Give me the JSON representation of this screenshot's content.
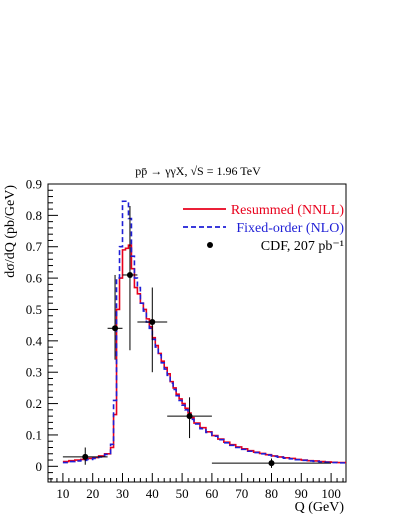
{
  "chart_data": {
    "type": "line",
    "title": "pp̄ → γγX, √S = 1.96 TeV",
    "xlabel": "Q (GeV)",
    "ylabel": "dσ/dQ (pb/GeV)",
    "xlim": [
      5,
      105
    ],
    "ylim": [
      -0.05,
      0.9
    ],
    "xticks": [
      10,
      20,
      30,
      40,
      50,
      60,
      70,
      80,
      90,
      100
    ],
    "yticks": [
      0,
      0.1,
      0.2,
      0.3,
      0.4,
      0.5,
      0.6,
      0.7,
      0.8,
      0.9
    ],
    "legend_position": "right",
    "grid": false,
    "series": [
      {
        "name": "Resummed (NNLL)",
        "style": "step",
        "color": "#e8001c",
        "bins": [
          [
            10,
            12,
            0.015
          ],
          [
            12,
            14,
            0.018
          ],
          [
            14,
            16,
            0.02
          ],
          [
            16,
            18,
            0.022
          ],
          [
            18,
            20,
            0.025
          ],
          [
            20,
            22,
            0.028
          ],
          [
            22,
            24,
            0.033
          ],
          [
            24,
            26,
            0.04
          ],
          [
            26,
            27,
            0.06
          ],
          [
            27,
            28,
            0.165
          ],
          [
            28,
            29,
            0.5
          ],
          [
            29,
            30,
            0.6
          ],
          [
            30,
            31,
            0.69
          ],
          [
            31,
            32,
            0.695
          ],
          [
            32,
            33,
            0.705
          ],
          [
            33,
            34,
            0.63
          ],
          [
            34,
            35,
            0.57
          ],
          [
            35,
            36,
            0.55
          ],
          [
            36,
            37,
            0.52
          ],
          [
            37,
            38,
            0.5
          ],
          [
            38,
            39,
            0.47
          ],
          [
            39,
            40,
            0.445
          ],
          [
            40,
            41,
            0.41
          ],
          [
            41,
            42,
            0.385
          ],
          [
            42,
            43,
            0.36
          ],
          [
            43,
            44,
            0.335
          ],
          [
            44,
            45,
            0.315
          ],
          [
            45,
            46,
            0.295
          ],
          [
            46,
            47,
            0.27
          ],
          [
            47,
            48,
            0.25
          ],
          [
            48,
            49,
            0.23
          ],
          [
            49,
            50,
            0.215
          ],
          [
            50,
            51,
            0.2
          ],
          [
            51,
            52,
            0.185
          ],
          [
            52,
            53,
            0.17
          ],
          [
            53,
            54,
            0.155
          ],
          [
            54,
            56,
            0.138
          ],
          [
            56,
            58,
            0.123
          ],
          [
            58,
            60,
            0.11
          ],
          [
            60,
            62,
            0.098
          ],
          [
            62,
            64,
            0.087
          ],
          [
            64,
            66,
            0.077
          ],
          [
            66,
            68,
            0.069
          ],
          [
            68,
            70,
            0.062
          ],
          [
            70,
            72,
            0.056
          ],
          [
            72,
            74,
            0.05
          ],
          [
            74,
            76,
            0.045
          ],
          [
            76,
            78,
            0.041
          ],
          [
            78,
            80,
            0.037
          ],
          [
            80,
            82,
            0.033
          ],
          [
            82,
            84,
            0.03
          ],
          [
            84,
            86,
            0.027
          ],
          [
            86,
            88,
            0.025
          ],
          [
            88,
            90,
            0.022
          ],
          [
            90,
            92,
            0.02
          ],
          [
            92,
            94,
            0.018
          ],
          [
            94,
            96,
            0.017
          ],
          [
            96,
            98,
            0.015
          ],
          [
            98,
            100,
            0.014
          ],
          [
            100,
            102,
            0.013
          ],
          [
            102,
            105,
            0.012
          ]
        ]
      },
      {
        "name": "Fixed-order (NLO)",
        "style": "step-dashed",
        "color": "#1f1fd6",
        "bins": [
          [
            10,
            12,
            0.012
          ],
          [
            12,
            14,
            0.015
          ],
          [
            14,
            16,
            0.017
          ],
          [
            16,
            18,
            0.019
          ],
          [
            18,
            20,
            0.022
          ],
          [
            20,
            22,
            0.025
          ],
          [
            22,
            24,
            0.03
          ],
          [
            24,
            26,
            0.038
          ],
          [
            26,
            27,
            0.07
          ],
          [
            27,
            28,
            0.21
          ],
          [
            28,
            29,
            0.6
          ],
          [
            29,
            30,
            0.7
          ],
          [
            30,
            31,
            0.845
          ],
          [
            31,
            32,
            0.845
          ],
          [
            32,
            33,
            0.79
          ],
          [
            33,
            34,
            0.67
          ],
          [
            34,
            35,
            0.6
          ],
          [
            35,
            36,
            0.57
          ],
          [
            36,
            37,
            0.52
          ],
          [
            37,
            38,
            0.495
          ],
          [
            38,
            39,
            0.46
          ],
          [
            39,
            40,
            0.44
          ],
          [
            40,
            41,
            0.405
          ],
          [
            41,
            42,
            0.38
          ],
          [
            42,
            43,
            0.355
          ],
          [
            43,
            44,
            0.33
          ],
          [
            44,
            45,
            0.31
          ],
          [
            45,
            46,
            0.29
          ],
          [
            46,
            47,
            0.265
          ],
          [
            47,
            48,
            0.245
          ],
          [
            48,
            49,
            0.225
          ],
          [
            49,
            50,
            0.21
          ],
          [
            50,
            51,
            0.195
          ],
          [
            51,
            52,
            0.18
          ],
          [
            52,
            53,
            0.165
          ],
          [
            53,
            54,
            0.15
          ],
          [
            54,
            56,
            0.135
          ],
          [
            56,
            58,
            0.12
          ],
          [
            58,
            60,
            0.108
          ],
          [
            60,
            62,
            0.096
          ],
          [
            62,
            64,
            0.085
          ],
          [
            64,
            66,
            0.075
          ],
          [
            66,
            68,
            0.067
          ],
          [
            68,
            70,
            0.06
          ],
          [
            70,
            72,
            0.054
          ],
          [
            72,
            74,
            0.048
          ],
          [
            74,
            76,
            0.044
          ],
          [
            76,
            78,
            0.04
          ],
          [
            78,
            80,
            0.036
          ],
          [
            80,
            82,
            0.032
          ],
          [
            82,
            84,
            0.029
          ],
          [
            84,
            86,
            0.026
          ],
          [
            86,
            88,
            0.024
          ],
          [
            88,
            90,
            0.021
          ],
          [
            90,
            92,
            0.019
          ],
          [
            92,
            94,
            0.017
          ],
          [
            94,
            96,
            0.016
          ],
          [
            96,
            98,
            0.014
          ],
          [
            98,
            100,
            0.013
          ],
          [
            100,
            102,
            0.012
          ],
          [
            102,
            105,
            0.011
          ]
        ]
      },
      {
        "name": "CDF, 207 pb⁻¹",
        "style": "points-errorbars",
        "color": "#000000",
        "points": [
          {
            "x": 17.5,
            "xlo": 10,
            "xhi": 25,
            "y": 0.03,
            "ylo": 0.005,
            "yhi": 0.06
          },
          {
            "x": 27.5,
            "xlo": 25,
            "xhi": 30,
            "y": 0.44,
            "ylo": 0.34,
            "yhi": 0.61
          },
          {
            "x": 32.5,
            "xlo": 30,
            "xhi": 35,
            "y": 0.61,
            "ylo": 0.37,
            "yhi": 0.83
          },
          {
            "x": 40,
            "xlo": 35,
            "xhi": 45,
            "y": 0.46,
            "ylo": 0.3,
            "yhi": 0.57
          },
          {
            "x": 52.5,
            "xlo": 45,
            "xhi": 60,
            "y": 0.16,
            "ylo": 0.09,
            "yhi": 0.22
          },
          {
            "x": 80,
            "xlo": 60,
            "xhi": 100,
            "y": 0.01,
            "ylo": -0.005,
            "yhi": 0.025
          }
        ]
      }
    ]
  }
}
